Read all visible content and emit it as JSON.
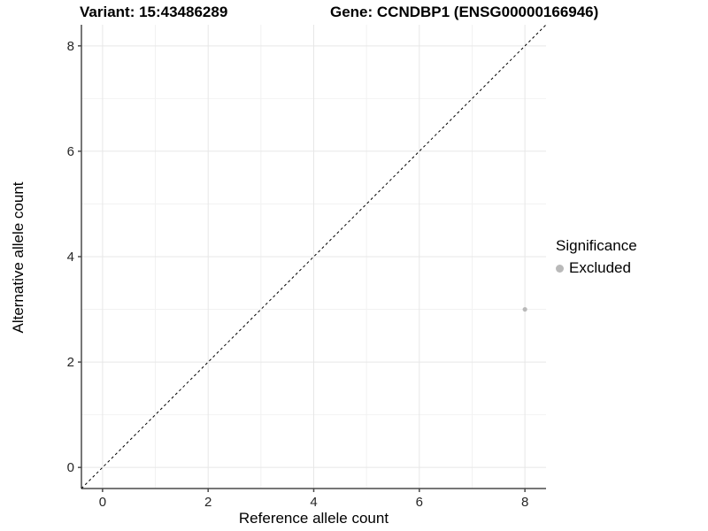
{
  "chart_data": {
    "type": "scatter",
    "title_left": "Variant: 15:43486289",
    "title_right": "Gene: CCNDBP1 (ENSG00000166946)",
    "xlabel": "Reference allele count",
    "ylabel": "Alternative allele count",
    "xlim": [
      -0.4,
      8.4
    ],
    "ylim": [
      -0.4,
      8.4
    ],
    "x_ticks": [
      0,
      2,
      4,
      6,
      8
    ],
    "y_ticks": [
      0,
      2,
      4,
      6,
      8
    ],
    "x_minor_ticks": [
      1,
      3,
      5,
      7
    ],
    "y_minor_ticks": [
      1,
      3,
      5,
      7
    ],
    "abline": {
      "slope": 1,
      "intercept": 0,
      "style": "dashed"
    },
    "points": [
      {
        "x": 8,
        "y": 3,
        "series": "Excluded"
      }
    ],
    "legend": {
      "title": "Significance",
      "position": "right",
      "items": [
        {
          "label": "Excluded",
          "color": "#b9b9b9"
        }
      ]
    },
    "grid": "major-and-minor",
    "colors": {
      "background": "#ffffff",
      "grid_major": "#e7e7e7",
      "grid_minor": "#f2f2f2",
      "axis_line": "#4a4a4a",
      "tick_mark": "#4a4a4a",
      "tick_label": "#262626",
      "abline": "#000000",
      "point": "#b9b9b9"
    }
  }
}
